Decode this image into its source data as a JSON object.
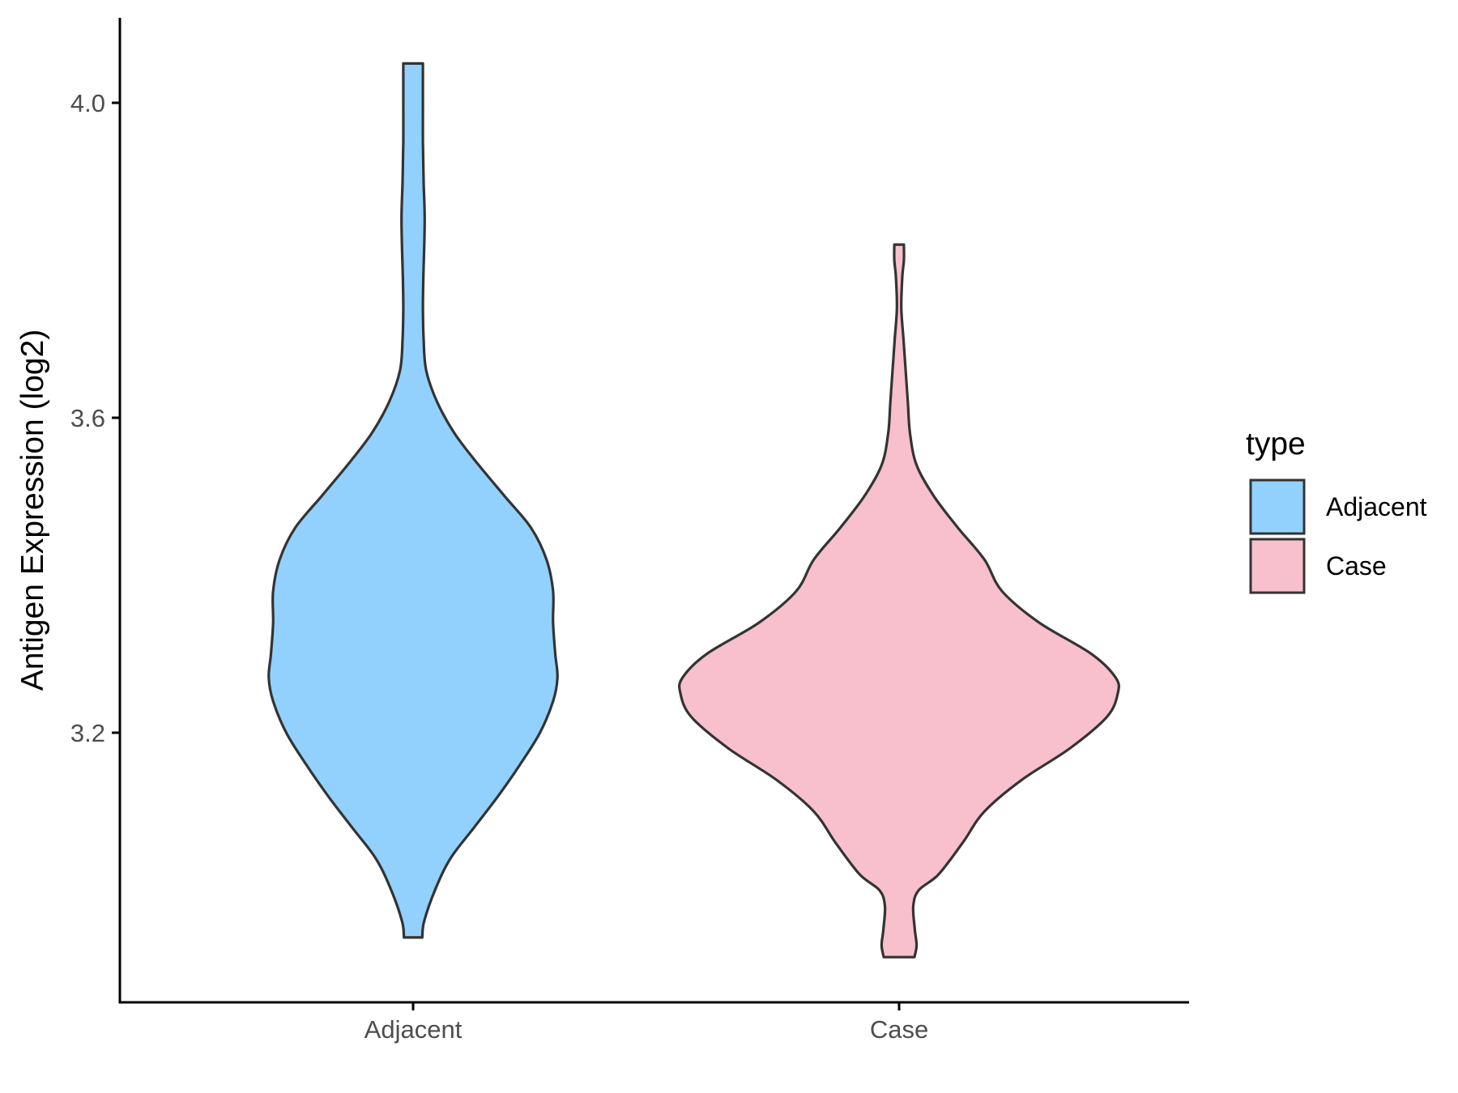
{
  "chart_data": {
    "type": "violin",
    "xlabel": "",
    "ylabel": "Antigen Expression (log2)",
    "ylim": [
      2.86,
      4.12
    ],
    "yticks": [
      3.2,
      3.6,
      4.0
    ],
    "ytick_labels": [
      "3.2",
      "3.6",
      "4.0"
    ],
    "categories": [
      "Adjacent",
      "Case"
    ],
    "legend": {
      "title": "type",
      "position": "right",
      "entries": [
        "Adjacent",
        "Case"
      ]
    },
    "grid": false,
    "colors": {
      "Adjacent": "#92d1fd",
      "Case": "#f7c0cc",
      "outline": "#333333",
      "axis": "#000000"
    },
    "series": [
      {
        "name": "Adjacent",
        "min": 2.94,
        "max": 4.05,
        "density": [
          [
            2.94,
            0.042
          ],
          [
            2.96,
            0.05
          ],
          [
            3.0,
            0.1
          ],
          [
            3.04,
            0.17
          ],
          [
            3.08,
            0.28
          ],
          [
            3.12,
            0.39
          ],
          [
            3.16,
            0.49
          ],
          [
            3.2,
            0.58
          ],
          [
            3.24,
            0.64
          ],
          [
            3.27,
            0.66
          ],
          [
            3.3,
            0.65
          ],
          [
            3.34,
            0.64
          ],
          [
            3.38,
            0.64
          ],
          [
            3.42,
            0.61
          ],
          [
            3.46,
            0.54
          ],
          [
            3.5,
            0.42
          ],
          [
            3.54,
            0.3
          ],
          [
            3.58,
            0.19
          ],
          [
            3.62,
            0.11
          ],
          [
            3.66,
            0.06
          ],
          [
            3.7,
            0.048
          ],
          [
            3.74,
            0.045
          ],
          [
            3.78,
            0.047
          ],
          [
            3.85,
            0.053
          ],
          [
            3.9,
            0.048
          ],
          [
            3.95,
            0.045
          ],
          [
            4.0,
            0.045
          ],
          [
            4.03,
            0.045
          ],
          [
            4.05,
            0.045
          ]
        ]
      },
      {
        "name": "Case",
        "min": 2.915,
        "max": 3.82,
        "density": [
          [
            2.915,
            0.07
          ],
          [
            2.93,
            0.08
          ],
          [
            2.95,
            0.072
          ],
          [
            2.98,
            0.065
          ],
          [
            3.0,
            0.09
          ],
          [
            3.02,
            0.18
          ],
          [
            3.06,
            0.29
          ],
          [
            3.1,
            0.39
          ],
          [
            3.14,
            0.56
          ],
          [
            3.18,
            0.78
          ],
          [
            3.22,
            0.95
          ],
          [
            3.25,
            1.0
          ],
          [
            3.27,
            0.99
          ],
          [
            3.3,
            0.88
          ],
          [
            3.34,
            0.64
          ],
          [
            3.38,
            0.47
          ],
          [
            3.42,
            0.39
          ],
          [
            3.46,
            0.27
          ],
          [
            3.5,
            0.16
          ],
          [
            3.54,
            0.08
          ],
          [
            3.58,
            0.05
          ],
          [
            3.62,
            0.04
          ],
          [
            3.66,
            0.03
          ],
          [
            3.7,
            0.02
          ],
          [
            3.74,
            0.01
          ],
          [
            3.78,
            0.015
          ],
          [
            3.8,
            0.022
          ],
          [
            3.82,
            0.022
          ]
        ]
      }
    ]
  }
}
